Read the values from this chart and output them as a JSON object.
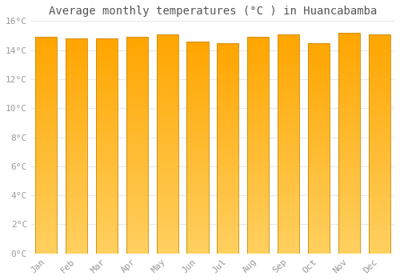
{
  "title": "Average monthly temperatures (°C ) in Huancabamba",
  "months": [
    "Jan",
    "Feb",
    "Mar",
    "Apr",
    "May",
    "Jun",
    "Jul",
    "Aug",
    "Sep",
    "Oct",
    "Nov",
    "Dec"
  ],
  "values": [
    14.9,
    14.8,
    14.8,
    14.9,
    15.1,
    14.6,
    14.5,
    14.9,
    15.1,
    14.5,
    15.2,
    15.1
  ],
  "bar_color_top": "#FFA500",
  "bar_color_bottom": "#FFD060",
  "bar_edge_color": "#CC8800",
  "ylim": [
    0,
    16
  ],
  "yticks": [
    0,
    2,
    4,
    6,
    8,
    10,
    12,
    14,
    16
  ],
  "ytick_labels": [
    "0°C",
    "2°C",
    "4°C",
    "6°C",
    "8°C",
    "10°C",
    "12°C",
    "14°C",
    "16°C"
  ],
  "background_color": "#FFFFFF",
  "grid_color": "#E8E8E8",
  "title_fontsize": 10,
  "tick_fontsize": 8,
  "title_color": "#555555",
  "tick_color": "#999999",
  "bar_width": 0.72
}
